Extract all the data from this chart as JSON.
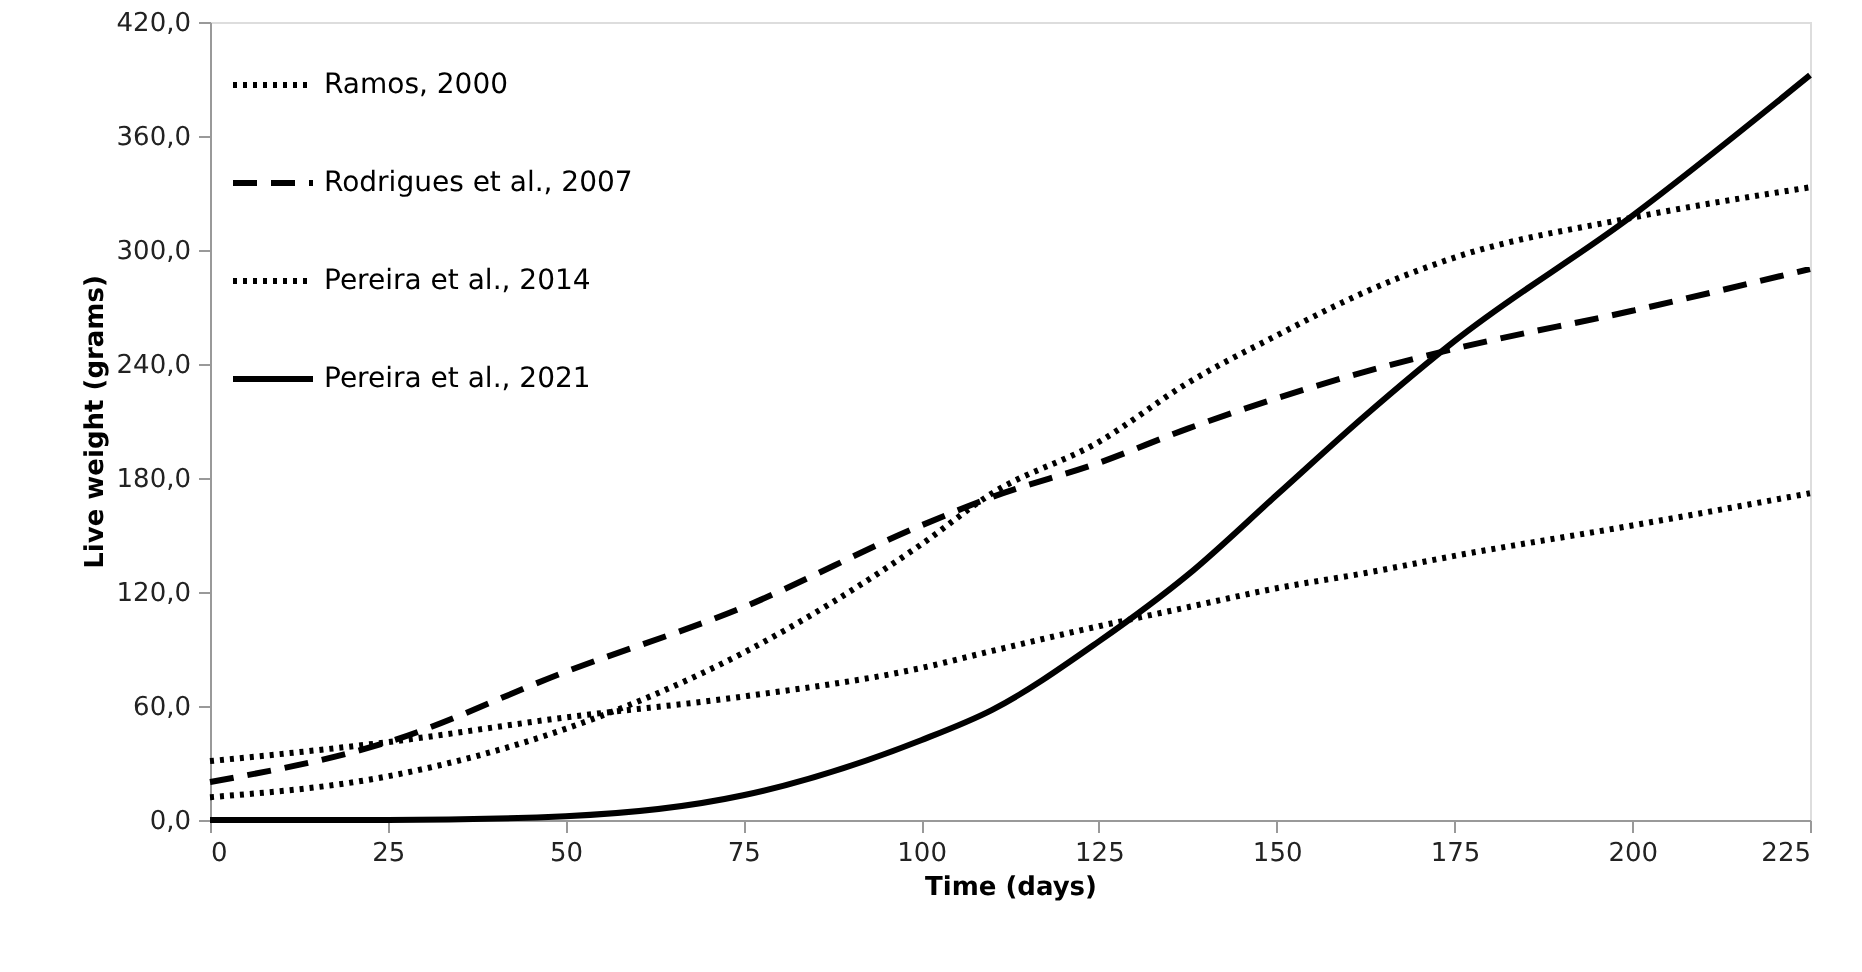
{
  "chart_data": {
    "type": "line",
    "xlabel": "Time (days)",
    "ylabel": "Live weight (grams)",
    "xlim": [
      0,
      225
    ],
    "xticks": [
      0,
      25,
      50,
      75,
      100,
      125,
      150,
      175,
      200,
      225
    ],
    "ylim": [
      0,
      420
    ],
    "yticks": [
      {
        "value": 0,
        "label": "0,0"
      },
      {
        "value": 60,
        "label": "60,0"
      },
      {
        "value": 120,
        "label": "120,0"
      },
      {
        "value": 180,
        "label": "180,0"
      },
      {
        "value": 240,
        "label": "240,0"
      },
      {
        "value": 300,
        "label": "300,0"
      },
      {
        "value": 360,
        "label": "360,0"
      },
      {
        "value": 420,
        "label": "420,0"
      }
    ],
    "grid": false,
    "legend": "top left",
    "x": [
      0,
      25,
      50,
      75,
      100,
      110,
      125,
      137.5,
      150,
      162.5,
      175,
      200,
      225
    ],
    "series": [
      {
        "name": "Ramos, 2000",
        "color": "#000000",
        "line_style": "dotted",
        "values": [
          31,
          41,
          54,
          65,
          80,
          89,
          102,
          112,
          122,
          130,
          139,
          155,
          172
        ]
      },
      {
        "name": "Rodrigues et al., 2007",
        "color": "#000000",
        "line_style": "dashed",
        "values": [
          20,
          41,
          78,
          112,
          155,
          170,
          188,
          206,
          222,
          236,
          248,
          268,
          290
        ]
      },
      {
        "name": "Pereira et al., 2014",
        "color": "#000000",
        "line_style": "dotted",
        "values": [
          12,
          23,
          48,
          88,
          145,
          172,
          199,
          230,
          255,
          278,
          296,
          317,
          333
        ]
      },
      {
        "name": "Pereira et al., 2021",
        "color": "#000000",
        "line_style": "solid",
        "values": [
          0,
          0,
          2,
          13,
          42,
          58,
          94,
          129,
          171,
          213,
          252,
          318,
          392
        ]
      }
    ]
  }
}
